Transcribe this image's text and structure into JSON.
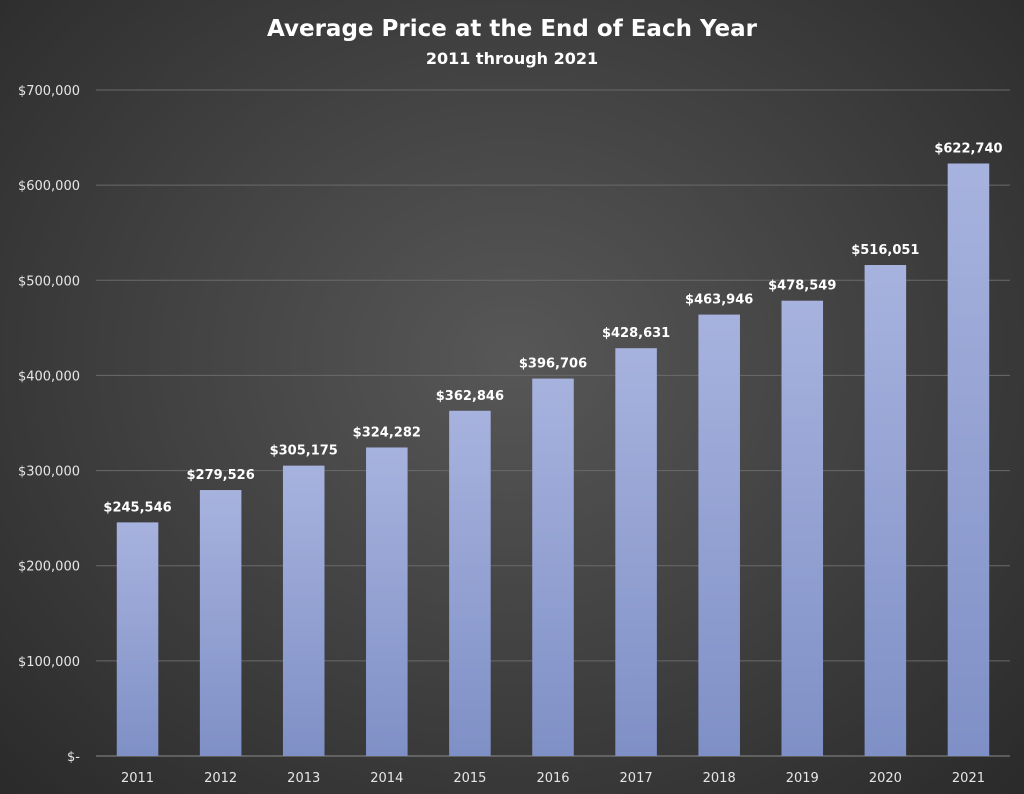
{
  "chart_data": {
    "type": "bar",
    "title": "Average Price at the End of Each Year",
    "subtitle": "2011 through 2021",
    "xlabel": "",
    "ylabel": "",
    "categories": [
      "2011",
      "2012",
      "2013",
      "2014",
      "2015",
      "2016",
      "2017",
      "2018",
      "2019",
      "2020",
      "2021"
    ],
    "values": [
      245546,
      279526,
      305175,
      324282,
      362846,
      396706,
      428631,
      463946,
      478549,
      516051,
      622740
    ],
    "value_labels": [
      "$245,546",
      "$279,526",
      "$305,175",
      "$324,282",
      "$362,846",
      "$396,706",
      "$428,631",
      "$463,946",
      "$478,549",
      "$516,051",
      "$622,740"
    ],
    "ylim": [
      0,
      700000
    ],
    "yticks": [
      0,
      100000,
      200000,
      300000,
      400000,
      500000,
      600000,
      700000
    ],
    "ytick_labels": [
      "$-",
      "$100,000",
      "$200,000",
      "$300,000",
      "$400,000",
      "$500,000",
      "$600,000",
      "$700,000"
    ],
    "grid": true,
    "legend": "none",
    "colors": {
      "bar_top": "#a7b2de",
      "bar_bottom": "#7f90c6",
      "background": "#474747"
    }
  }
}
